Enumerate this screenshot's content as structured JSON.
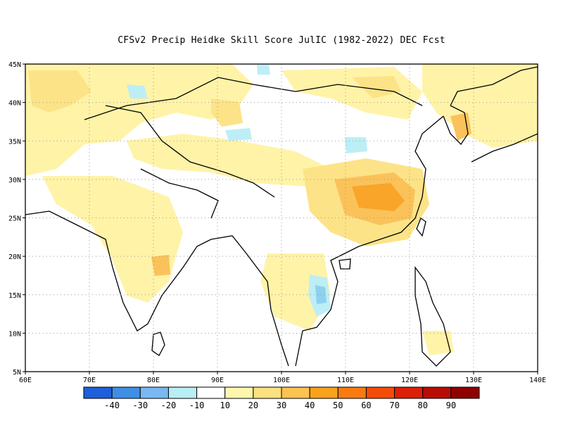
{
  "title": "CFSv2 Precip Heidke Skill Score JulIC (1982-2022) DEC Fcst",
  "axes": {
    "x_ticks": [
      "60E",
      "70E",
      "80E",
      "90E",
      "100E",
      "110E",
      "120E",
      "130E",
      "140E"
    ],
    "y_ticks": [
      "45N",
      "40N",
      "35N",
      "30N",
      "25N",
      "20N",
      "15N",
      "10N",
      "5N"
    ]
  },
  "colorbar": {
    "colors": [
      "#1f5fd9",
      "#3f8ee6",
      "#79b8f2",
      "#b8eef4",
      "#ffffff",
      "#fff6ae",
      "#fde17e",
      "#fcc350",
      "#f9a21b",
      "#f87a11",
      "#f54b0a",
      "#db1f08",
      "#b70d05",
      "#8f0100"
    ],
    "labels": [
      "-40",
      "-30",
      "-20",
      "-10",
      "10",
      "20",
      "30",
      "40",
      "50",
      "60",
      "70",
      "80",
      "90"
    ]
  },
  "colors": {
    "light_yellow": "#fff3a8",
    "yellow": "#fde387",
    "orange": "#fbc25a",
    "dark_orange": "#f8a52a",
    "light_blue": "#bdeef6",
    "mid_blue": "#8ed0ee"
  }
}
